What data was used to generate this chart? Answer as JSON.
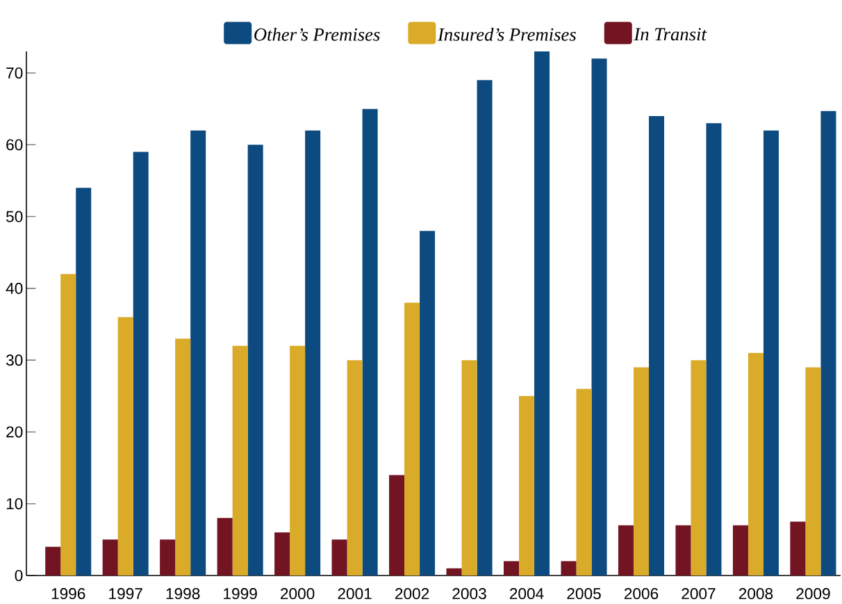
{
  "chart_data": {
    "type": "bar",
    "categories": [
      "1996",
      "1997",
      "1998",
      "1999",
      "2000",
      "2001",
      "2002",
      "2003",
      "2004",
      "2005",
      "2006",
      "2007",
      "2008",
      "2009"
    ],
    "series": [
      {
        "name": "Other’s Premises",
        "color": "#0d4a80",
        "values": [
          54,
          59,
          62,
          60,
          62,
          65,
          48,
          69,
          73,
          72,
          64,
          63,
          62,
          64.7
        ]
      },
      {
        "name": "Insured’s Premises",
        "color": "#d9ab28",
        "values": [
          42,
          36,
          33,
          32,
          32,
          30,
          38,
          30,
          25,
          26,
          29,
          30,
          31,
          29
        ]
      },
      {
        "name": "In Transit",
        "color": "#721422",
        "values": [
          4,
          5,
          5,
          8,
          6,
          5,
          14,
          1,
          2,
          2,
          7,
          7,
          7,
          7.5
        ]
      }
    ],
    "ylim": [
      0,
      73
    ],
    "yticks": [
      0,
      10,
      20,
      30,
      40,
      50,
      60,
      70
    ],
    "legend": "top",
    "grid": false
  }
}
